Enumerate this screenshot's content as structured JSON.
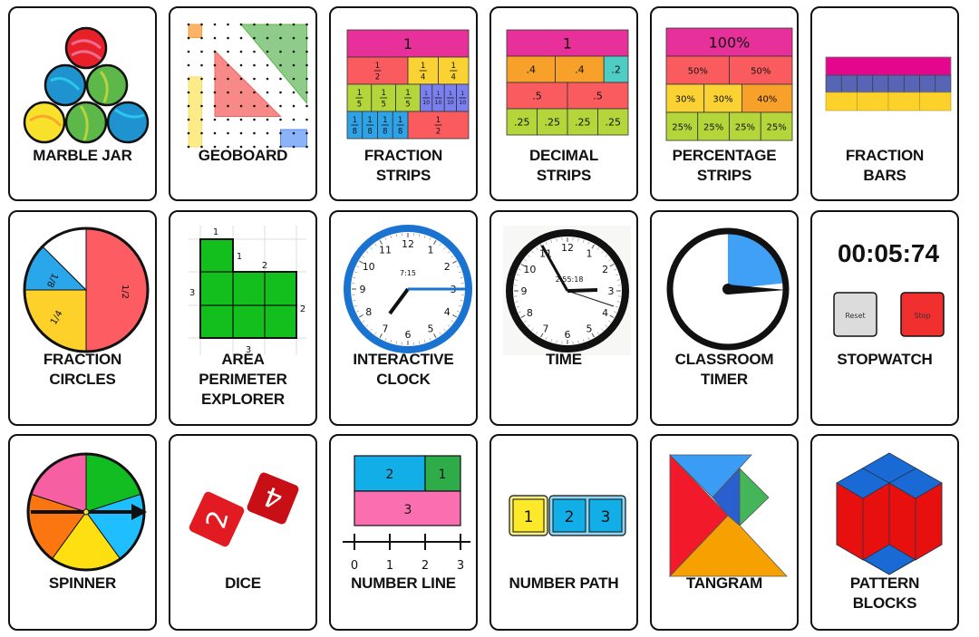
{
  "cards": [
    {
      "label": "MARBLE JAR"
    },
    {
      "label": "GEOBOARD"
    },
    {
      "label": "FRACTION\nSTRIPS",
      "strips": [
        [
          {
            "label": "1",
            "value": 1,
            "color": "#e8309a"
          }
        ],
        [
          {
            "label": "1/2",
            "value": 0.5,
            "color": "#f95b5f"
          },
          {
            "label": "1/4",
            "value": 0.25,
            "color": "#fbd233"
          },
          {
            "label": "1/4",
            "value": 0.25,
            "color": "#fbd233"
          }
        ],
        [
          {
            "label": "1/5",
            "value": 0.2,
            "color": "#b5d63b"
          },
          {
            "label": "1/5",
            "value": 0.2,
            "color": "#b5d63b"
          },
          {
            "label": "1/5",
            "value": 0.2,
            "color": "#b5d63b"
          },
          {
            "label": "1/10",
            "value": 0.1,
            "color": "#7b80f0"
          },
          {
            "label": "1/10",
            "value": 0.1,
            "color": "#7b80f0"
          },
          {
            "label": "1/10",
            "value": 0.1,
            "color": "#7b80f0"
          },
          {
            "label": "1/10",
            "value": 0.1,
            "color": "#7b80f0"
          }
        ],
        [
          {
            "label": "1/8",
            "value": 0.125,
            "color": "#2ea3e8"
          },
          {
            "label": "1/8",
            "value": 0.125,
            "color": "#2ea3e8"
          },
          {
            "label": "1/8",
            "value": 0.125,
            "color": "#2ea3e8"
          },
          {
            "label": "1/8",
            "value": 0.125,
            "color": "#2ea3e8"
          },
          {
            "label": "1/2",
            "value": 0.5,
            "color": "#f95b5f"
          }
        ]
      ]
    },
    {
      "label": "DECIMAL\nSTRIPS",
      "strips": [
        [
          {
            "label": "1",
            "value": 1,
            "color": "#e8309a"
          }
        ],
        [
          {
            "label": ".4",
            "value": 0.4,
            "color": "#f7a12a"
          },
          {
            "label": ".4",
            "value": 0.4,
            "color": "#f7a12a"
          },
          {
            "label": ".2",
            "value": 0.2,
            "color": "#4ecdc4"
          }
        ],
        [
          {
            "label": ".5",
            "value": 0.5,
            "color": "#f95b5f"
          },
          {
            "label": ".5",
            "value": 0.5,
            "color": "#f95b5f"
          }
        ],
        [
          {
            "label": ".25",
            "value": 0.25,
            "color": "#b5d63b"
          },
          {
            "label": ".25",
            "value": 0.25,
            "color": "#b5d63b"
          },
          {
            "label": ".25",
            "value": 0.25,
            "color": "#b5d63b"
          },
          {
            "label": ".25",
            "value": 0.25,
            "color": "#b5d63b"
          }
        ]
      ]
    },
    {
      "label": "PERCENTAGE\nSTRIPS",
      "strips": [
        [
          {
            "label": "100%",
            "value": 1,
            "color": "#e8309a"
          }
        ],
        [
          {
            "label": "50%",
            "value": 0.5,
            "color": "#f95b5f"
          },
          {
            "label": "50%",
            "value": 0.5,
            "color": "#f95b5f"
          }
        ],
        [
          {
            "label": "30%",
            "value": 0.3,
            "color": "#fbd233"
          },
          {
            "label": "30%",
            "value": 0.3,
            "color": "#fbd233"
          },
          {
            "label": "40%",
            "value": 0.4,
            "color": "#f7a12a"
          }
        ],
        [
          {
            "label": "25%",
            "value": 0.25,
            "color": "#b5d63b"
          },
          {
            "label": "25%",
            "value": 0.25,
            "color": "#b5d63b"
          },
          {
            "label": "25%",
            "value": 0.25,
            "color": "#b5d63b"
          },
          {
            "label": "25%",
            "value": 0.25,
            "color": "#b5d63b"
          }
        ]
      ]
    },
    {
      "label": "FRACTION\nBARS"
    },
    {
      "label": "FRACTION\nCIRCLES",
      "slices": [
        "1/2",
        "1/4",
        "1/8"
      ]
    },
    {
      "label": "AREA\nPERIMETER\nEXPLORER",
      "edge_labels": [
        "1",
        "1",
        "2",
        "3",
        "2",
        "3"
      ]
    },
    {
      "label": "INTERACTIVE\nCLOCK",
      "digital": "7:15"
    },
    {
      "label": "TIME",
      "digital": "2:55:18"
    },
    {
      "label": "CLASSROOM\nTIMER"
    },
    {
      "label": "STOPWATCH",
      "display": "00:05:74",
      "reset": "Reset",
      "stop": "Stop"
    },
    {
      "label": "SPINNER"
    },
    {
      "label": "DICE",
      "faces": [
        "2",
        "4"
      ]
    },
    {
      "label": "NUMBER LINE",
      "blocks": [
        "2",
        "1",
        "3"
      ],
      "ticks": [
        "0",
        "1",
        "2",
        "3"
      ]
    },
    {
      "label": "NUMBER PATH",
      "tiles": [
        "1",
        "2",
        "3"
      ]
    },
    {
      "label": "TANGRAM"
    },
    {
      "label": "PATTERN\nBLOCKS"
    }
  ],
  "clock_numerals": [
    "12",
    "1",
    "2",
    "3",
    "4",
    "5",
    "6",
    "7",
    "8",
    "9",
    "10",
    "11"
  ],
  "colors": {
    "border": "#111111",
    "clock_blue": "#1a73d0",
    "timer_blue": "#3fa0f5",
    "stop_red": "#f22f2f"
  }
}
